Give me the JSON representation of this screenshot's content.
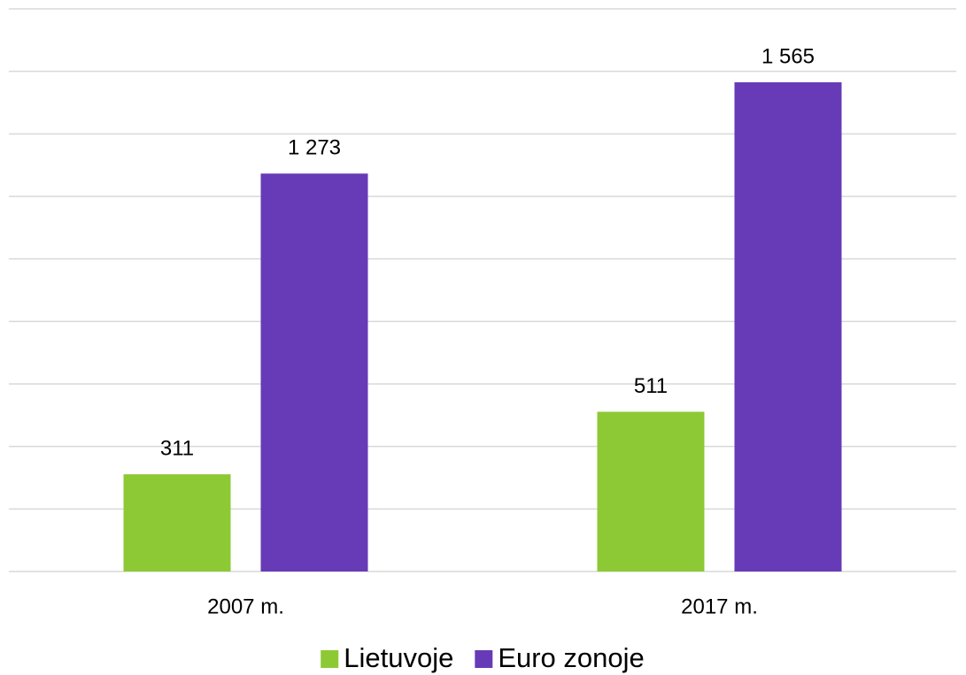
{
  "chart_data": {
    "type": "bar",
    "categories": [
      "2007 m.",
      "2017 m."
    ],
    "series": [
      {
        "name": "Lietuvoje",
        "color": "#8dc935",
        "values": [
          311,
          511
        ],
        "value_labels": [
          "311",
          "511"
        ]
      },
      {
        "name": "Euro zonoje",
        "color": "#673ab7",
        "values": [
          1273,
          1565
        ],
        "value_labels": [
          "1 273",
          "1 565"
        ]
      }
    ],
    "ylim": [
      0,
      1800
    ],
    "yticks": [
      0,
      200,
      400,
      600,
      800,
      1000,
      1200,
      1400,
      1600,
      1800
    ],
    "grid": true,
    "legend": "bottom"
  }
}
